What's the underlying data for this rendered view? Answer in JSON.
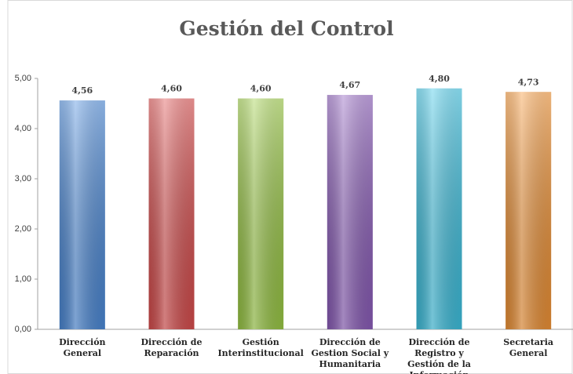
{
  "chart_data": {
    "type": "bar",
    "title": "Gestión del Control",
    "categories": [
      "Dirección General",
      "Dirección de Reparación",
      "Gestión Interinstitucional",
      "Dirección de Gestion Social y Humanitaria",
      "Dirección de Registro y Gestión de la Información",
      "Secretaria General"
    ],
    "values": [
      4.56,
      4.6,
      4.6,
      4.67,
      4.8,
      4.73
    ],
    "value_labels": [
      "4,56",
      "4,60",
      "4,60",
      "4,67",
      "4,80",
      "4,73"
    ],
    "colors": [
      "#4f8fe0",
      "#e05050",
      "#a0d048",
      "#9060c0",
      "#40c8e8",
      "#f89838"
    ],
    "ylim": [
      0,
      5
    ],
    "yticks": [
      {
        "value": 0,
        "label": "0,00"
      },
      {
        "value": 1,
        "label": "1,00"
      },
      {
        "value": 2,
        "label": "2,00"
      },
      {
        "value": 3,
        "label": "3,00"
      },
      {
        "value": 4,
        "label": "4,00"
      },
      {
        "value": 5,
        "label": "5,00"
      }
    ],
    "grid": false
  }
}
